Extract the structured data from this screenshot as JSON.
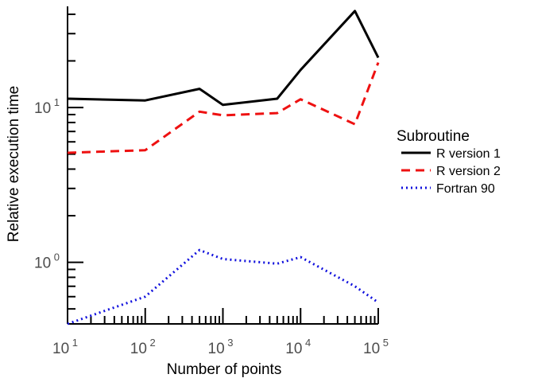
{
  "chart_data": {
    "type": "line",
    "xlabel": "Number of points",
    "ylabel": "Relative execution time",
    "x_scale": "log10",
    "y_scale": "log10",
    "xlim": [
      10,
      100000
    ],
    "ylim": [
      0.4,
      45
    ],
    "x_major_ticks": [
      {
        "value": 10,
        "base": "10",
        "exp": "1"
      },
      {
        "value": 100,
        "base": "10",
        "exp": "2"
      },
      {
        "value": 1000,
        "base": "10",
        "exp": "3"
      },
      {
        "value": 10000,
        "base": "10",
        "exp": "4"
      },
      {
        "value": 100000,
        "base": "10",
        "exp": "5"
      }
    ],
    "y_major_ticks": [
      {
        "value": 1,
        "base": "10",
        "exp": "0"
      },
      {
        "value": 10,
        "base": "10",
        "exp": "1"
      }
    ],
    "legend": {
      "title": "Subroutine",
      "position": "right"
    },
    "x": [
      10,
      100,
      500,
      1000,
      5000,
      10000,
      50000,
      100000
    ],
    "series": [
      {
        "name": "R version 1",
        "color": "#000000",
        "dash": "solid",
        "values": [
          11.4,
          11.1,
          13.2,
          10.4,
          11.4,
          17.5,
          42.0,
          21.0
        ]
      },
      {
        "name": "R version 2",
        "color": "#ee1111",
        "dash": "dashed",
        "values": [
          5.1,
          5.3,
          9.4,
          8.9,
          9.2,
          11.3,
          7.8,
          19.5
        ]
      },
      {
        "name": "Fortran 90",
        "color": "#1111dd",
        "dash": "dotted",
        "values": [
          0.4,
          0.6,
          1.2,
          1.05,
          0.98,
          1.08,
          0.7,
          0.55
        ]
      }
    ]
  }
}
